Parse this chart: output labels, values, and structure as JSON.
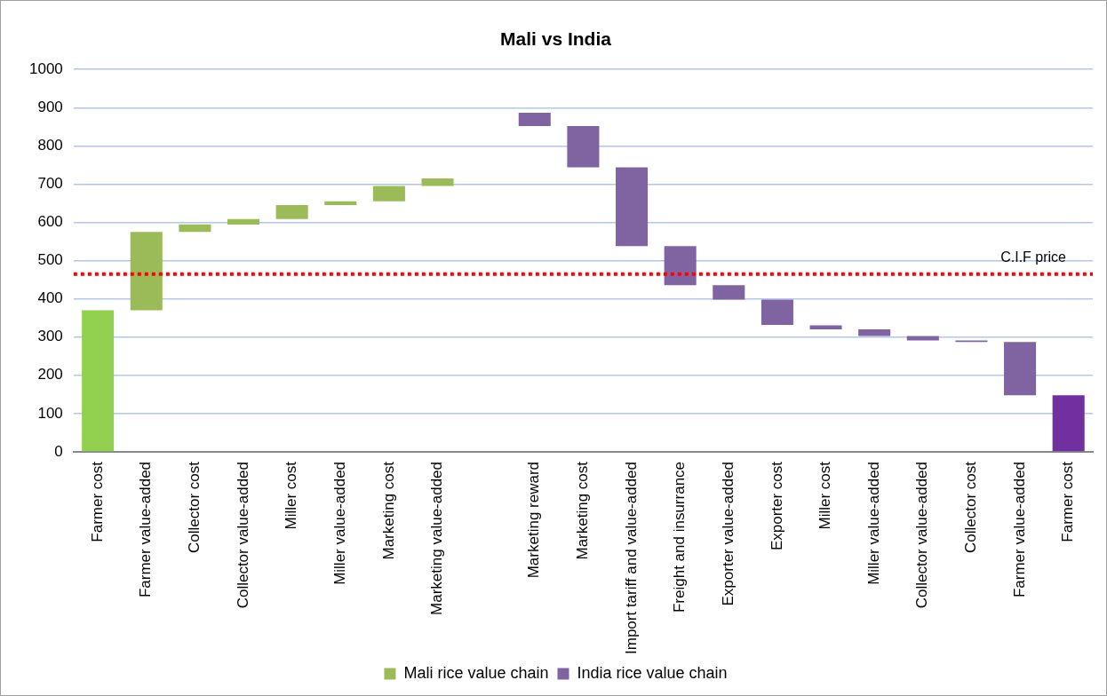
{
  "chart_data": {
    "type": "bar",
    "title": "Mali vs India",
    "categories": [
      "Farmer cost",
      "Farmer value-added",
      "Collector cost",
      "Collector value-added",
      "Miller cost",
      "Miller value-added",
      "Marketing cost",
      "Marketing value-added",
      null,
      "Marketing reward",
      "Marketing cost",
      "Import tariff and value-added",
      "Freight and insurrance",
      "Exporter value-added",
      "Exporter cost",
      "Miller cost",
      "Miller value-added",
      "Collector value-added",
      "Collector cost",
      "Farmer value-added",
      "Farmer cost"
    ],
    "series": [
      {
        "name": "Mali rice value chain",
        "color": "#9bbb59",
        "colors": [
          "#92d050",
          "#9bbb59",
          "#9bbb59",
          "#9bbb59",
          "#9bbb59",
          "#9bbb59",
          "#9bbb59",
          "#9bbb59",
          null,
          null,
          null,
          null,
          null,
          null,
          null,
          null,
          null,
          null,
          null,
          null,
          null
        ],
        "base": [
          0,
          370,
          575,
          594,
          609,
          645,
          655,
          695,
          null,
          null,
          null,
          null,
          null,
          null,
          null,
          null,
          null,
          null,
          null,
          null,
          null
        ],
        "values": [
          370,
          205,
          20,
          15,
          36,
          10,
          40,
          20,
          null,
          null,
          null,
          null,
          null,
          null,
          null,
          null,
          null,
          null,
          null,
          null,
          null
        ]
      },
      {
        "name": "India rice value chain",
        "color": "#8064a2",
        "colors": [
          null,
          null,
          null,
          null,
          null,
          null,
          null,
          null,
          null,
          "#8064a2",
          "#8064a2",
          "#8064a2",
          "#8064a2",
          "#8064a2",
          "#8064a2",
          "#8064a2",
          "#8064a2",
          "#8064a2",
          "#8064a2",
          "#8064a2",
          "#7030a0"
        ],
        "base": [
          null,
          null,
          null,
          null,
          null,
          null,
          null,
          null,
          null,
          852,
          744,
          538,
          436,
          398,
          332,
          320,
          303,
          291,
          287,
          148,
          0
        ],
        "values": [
          null,
          null,
          null,
          null,
          null,
          null,
          null,
          null,
          null,
          35,
          108,
          206,
          102,
          38,
          66,
          11,
          17,
          12,
          4,
          139,
          148
        ]
      }
    ],
    "ylim": [
      0,
      1000
    ],
    "yticks": [
      0,
      100,
      200,
      300,
      400,
      500,
      600,
      700,
      800,
      900,
      1000
    ],
    "grid": "y",
    "legend": "bottom",
    "ref_lines": [
      {
        "axis": "y",
        "value": 465,
        "label": "C.I.F price",
        "color": "#ff0000",
        "line_style": "dotted"
      }
    ]
  }
}
